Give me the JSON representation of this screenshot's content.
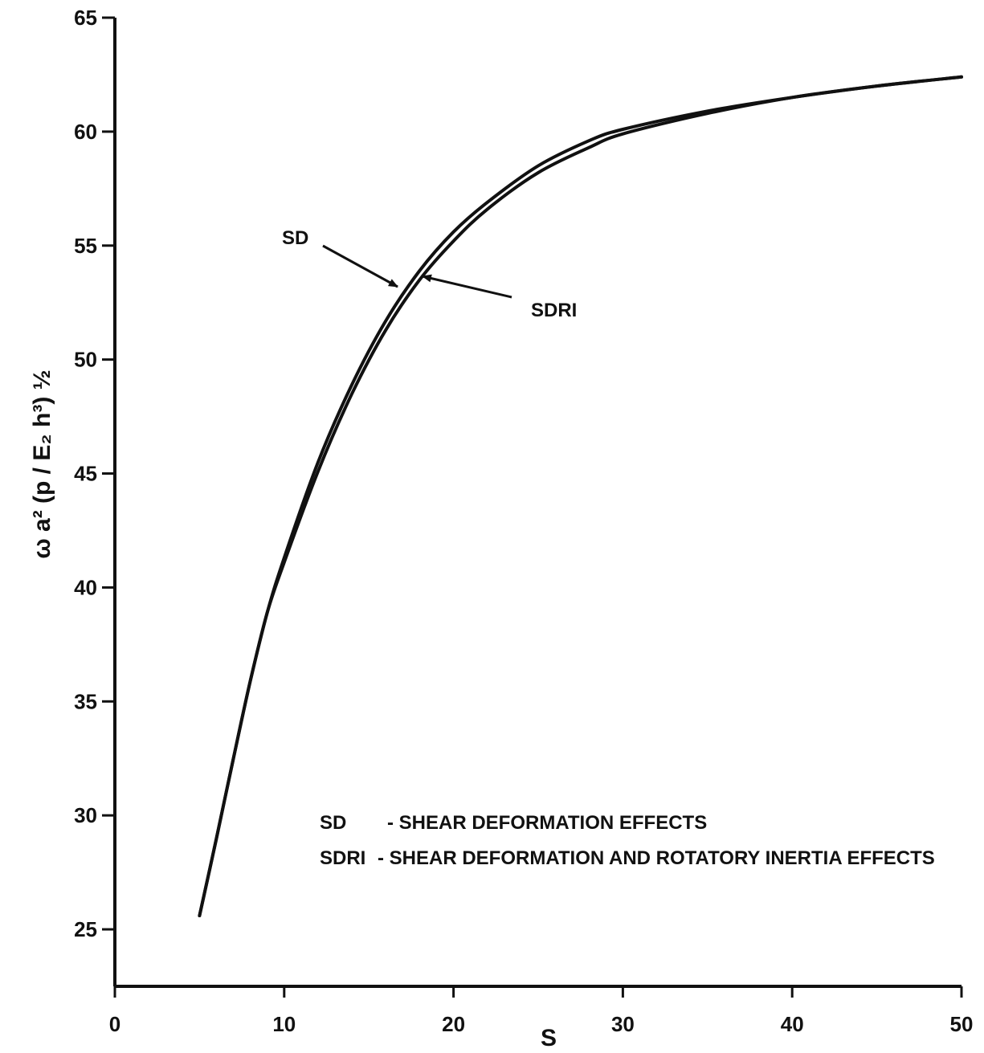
{
  "chart_data": {
    "type": "line",
    "xlabel": "S",
    "ylabel": "ω a² (p / E₂ h³) ½",
    "xlim": [
      0,
      50
    ],
    "ylim": [
      22.5,
      65
    ],
    "xticks": [
      0,
      10,
      20,
      30,
      40,
      50
    ],
    "yticks": [
      25,
      30,
      35,
      40,
      45,
      50,
      55,
      60,
      65
    ],
    "grid": false,
    "series": [
      {
        "name": "SD",
        "x": [
          5,
          6,
          7,
          8,
          9,
          10,
          12,
          14,
          16,
          18,
          20,
          22,
          25,
          28,
          30,
          35,
          40,
          45,
          50
        ],
        "y": [
          25.6,
          29.0,
          32.5,
          35.9,
          38.9,
          41.3,
          45.5,
          48.9,
          51.7,
          53.9,
          55.6,
          56.9,
          58.5,
          59.6,
          60.1,
          60.9,
          61.5,
          62.0,
          62.4
        ]
      },
      {
        "name": "SDRI",
        "x": [
          5,
          6,
          7,
          8,
          9,
          10,
          12,
          14,
          16,
          18,
          20,
          22,
          25,
          28,
          30,
          35,
          40,
          45,
          50
        ],
        "y": [
          25.6,
          29.0,
          32.5,
          35.9,
          38.9,
          41.1,
          45.1,
          48.5,
          51.3,
          53.5,
          55.2,
          56.6,
          58.2,
          59.3,
          59.9,
          60.8,
          61.5,
          62.0,
          62.4
        ]
      }
    ],
    "annotations": [
      {
        "text": "SD",
        "target_series": "SD"
      },
      {
        "text": "SDRI",
        "target_series": "SDRI"
      }
    ],
    "legend": [
      {
        "key": "SD",
        "desc": "- SHEAR DEFORMATION EFFECTS"
      },
      {
        "key": "SDRI",
        "desc": "- SHEAR DEFORMATION AND ROTATORY INERTIA EFFECTS"
      }
    ]
  }
}
